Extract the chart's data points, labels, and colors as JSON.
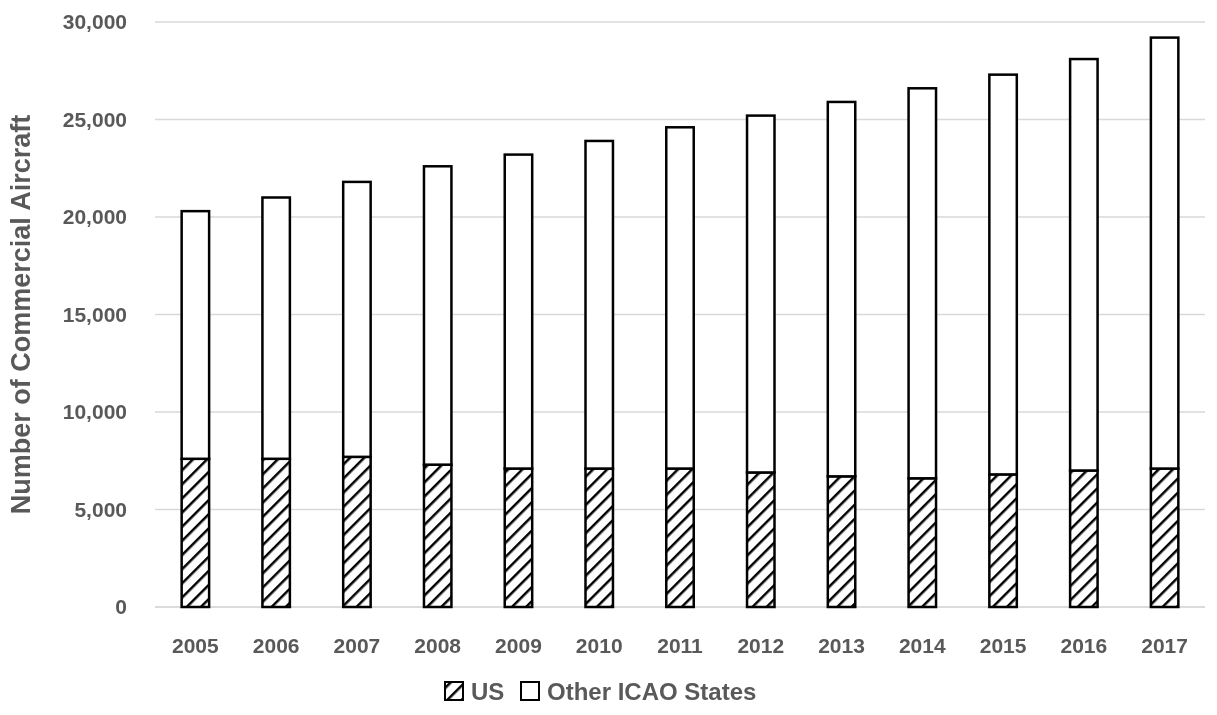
{
  "chart_data": {
    "type": "bar",
    "stacked": true,
    "ylabel": "Number of Commercial Aircraft",
    "categories": [
      "2005",
      "2006",
      "2007",
      "2008",
      "2009",
      "2010",
      "2011",
      "2012",
      "2013",
      "2014",
      "2015",
      "2016",
      "2017"
    ],
    "series": [
      {
        "name": "US",
        "color": "#000000",
        "values": [
          7600,
          7600,
          7700,
          7300,
          7100,
          7100,
          7100,
          6900,
          6700,
          6600,
          6800,
          7000,
          7100
        ]
      },
      {
        "name": "Other ICAO States",
        "color": "#ffffff",
        "values": [
          12700,
          13400,
          14100,
          15300,
          16100,
          16800,
          17500,
          18300,
          19200,
          20000,
          20500,
          21100,
          22100
        ]
      }
    ],
    "ylim": [
      0,
      30000
    ],
    "yticks": [
      {
        "value": 0,
        "label": "0"
      },
      {
        "value": 5000,
        "label": "5,000"
      },
      {
        "value": 10000,
        "label": "10,000"
      },
      {
        "value": 15000,
        "label": "15,000"
      },
      {
        "value": 20000,
        "label": "20,000"
      },
      {
        "value": 25000,
        "label": "25,000"
      },
      {
        "value": 30000,
        "label": "30,000"
      }
    ],
    "grid": "y",
    "legend": "bottom"
  }
}
